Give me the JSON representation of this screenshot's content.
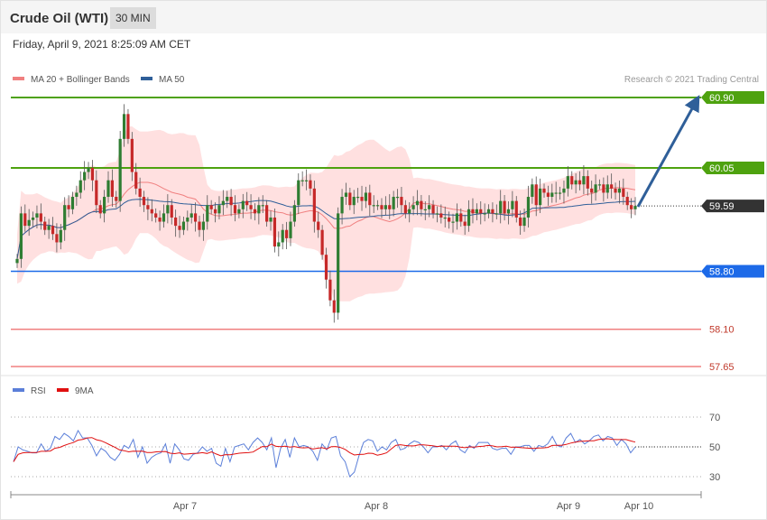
{
  "header": {
    "title": "Crude Oil (WTI)",
    "interval": "30 MIN"
  },
  "datetime": "Friday, April 9, 2021 8:25:09 AM CET",
  "copyright": "Research © 2021 Trading Central",
  "colors": {
    "ma20": "#f08080",
    "ma50": "#2f5f99",
    "bollinger_fill": "#ffd6d6",
    "resistance": "#4ea20f",
    "support": "#1d6ae8",
    "support_red": "#f08080",
    "current": "#333333",
    "candle_up": "#2f7d32",
    "candle_down": "#c62828",
    "arrow": "#2f5f99",
    "rsi": "#5b7fd9",
    "rsi_ma": "#e01010"
  },
  "chart_data": [
    {
      "type": "candlestick",
      "legend": [
        {
          "name": "MA 20 + Bollinger Bands",
          "color": "#f08080"
        },
        {
          "name": "MA 50",
          "color": "#2f5f99"
        }
      ],
      "x_labels": [
        "Apr 7",
        "Apr 8",
        "Apr 9",
        "Apr 10"
      ],
      "ylim": [
        57.55,
        61.0
      ],
      "levels": [
        {
          "value": 60.9,
          "label": "60.90",
          "kind": "resistance"
        },
        {
          "value": 60.05,
          "label": "60.05",
          "kind": "resistance"
        },
        {
          "value": 59.59,
          "label": "59.59",
          "kind": "current"
        },
        {
          "value": 58.8,
          "label": "58.80",
          "kind": "support"
        },
        {
          "value": 58.1,
          "label": "58.10",
          "kind": "support_red"
        },
        {
          "value": 57.65,
          "label": "57.65",
          "kind": "support_red"
        }
      ],
      "close": [
        58.95,
        59.5,
        59.35,
        59.42,
        59.45,
        59.5,
        59.4,
        59.3,
        59.35,
        59.25,
        59.15,
        59.3,
        59.6,
        59.55,
        59.7,
        59.75,
        59.9,
        60.0,
        60.05,
        59.9,
        59.6,
        59.5,
        59.7,
        59.9,
        59.7,
        59.65,
        60.4,
        60.7,
        60.4,
        60.0,
        59.8,
        59.7,
        59.6,
        59.55,
        59.5,
        59.45,
        59.4,
        59.5,
        59.6,
        59.45,
        59.35,
        59.3,
        59.4,
        59.45,
        59.5,
        59.4,
        59.3,
        59.4,
        59.6,
        59.55,
        59.5,
        59.6,
        59.65,
        59.7,
        59.6,
        59.5,
        59.55,
        59.65,
        59.6,
        59.55,
        59.5,
        59.6,
        59.6,
        59.4,
        59.45,
        59.1,
        59.15,
        59.3,
        59.2,
        59.4,
        59.6,
        59.9,
        59.9,
        59.9,
        59.8,
        59.4,
        59.3,
        59.0,
        58.7,
        58.45,
        58.3,
        59.5,
        59.7,
        59.75,
        59.6,
        59.7,
        59.7,
        59.65,
        59.75,
        59.6,
        59.6,
        59.6,
        59.55,
        59.6,
        59.55,
        59.7,
        59.7,
        59.6,
        59.5,
        59.55,
        59.6,
        59.65,
        59.55,
        59.55,
        59.6,
        59.5,
        59.5,
        59.45,
        59.45,
        59.4,
        59.4,
        59.5,
        59.4,
        59.35,
        59.55,
        59.5,
        59.55,
        59.5,
        59.5,
        59.55,
        59.5,
        59.5,
        59.65,
        59.5,
        59.55,
        59.65,
        59.45,
        59.35,
        59.45,
        59.7,
        59.85,
        59.6,
        59.8,
        59.75,
        59.7,
        59.75,
        59.75,
        59.75,
        59.8,
        59.95,
        59.85,
        59.9,
        59.85,
        59.95,
        59.8,
        59.75,
        59.85,
        59.85,
        59.75,
        59.85,
        59.8,
        59.75,
        59.8,
        59.7,
        59.6,
        59.55,
        59.59
      ]
    },
    {
      "type": "line",
      "series": [
        {
          "name": "RSI"
        },
        {
          "name": "9MA"
        }
      ],
      "ylim": [
        20,
        80
      ],
      "y_ticks": [
        70,
        50,
        30
      ],
      "x_labels": [
        "Apr 7",
        "Apr 8",
        "Apr 9",
        "Apr 10"
      ],
      "rsi": [
        40,
        50,
        48,
        47,
        46,
        46,
        52,
        47,
        49,
        57,
        55,
        59,
        57,
        54,
        61,
        56,
        56,
        51,
        44,
        49,
        47,
        43,
        41,
        45,
        51,
        49,
        55,
        43,
        50,
        39,
        43,
        45,
        46,
        52,
        39,
        52,
        48,
        42,
        41,
        45,
        46,
        50,
        47,
        49,
        39,
        37,
        49,
        40,
        50,
        51,
        52,
        48,
        53,
        56,
        53,
        48,
        56,
        36,
        49,
        55,
        43,
        56,
        50,
        51,
        50,
        47,
        41,
        52,
        48,
        56,
        57,
        44,
        40,
        30,
        33,
        44,
        53,
        55,
        54,
        47,
        50,
        48,
        53,
        55,
        48,
        49,
        52,
        54,
        53,
        50,
        46,
        50,
        50,
        51,
        48,
        52,
        54,
        48,
        46,
        51,
        49,
        53,
        53,
        53,
        49,
        48,
        49,
        49,
        45,
        50,
        50,
        51,
        51,
        47,
        51,
        50,
        52,
        57,
        51,
        50,
        56,
        59,
        53,
        55,
        52,
        54,
        57,
        58,
        54,
        57,
        56,
        51,
        55,
        52,
        46,
        50
      ]
    }
  ]
}
